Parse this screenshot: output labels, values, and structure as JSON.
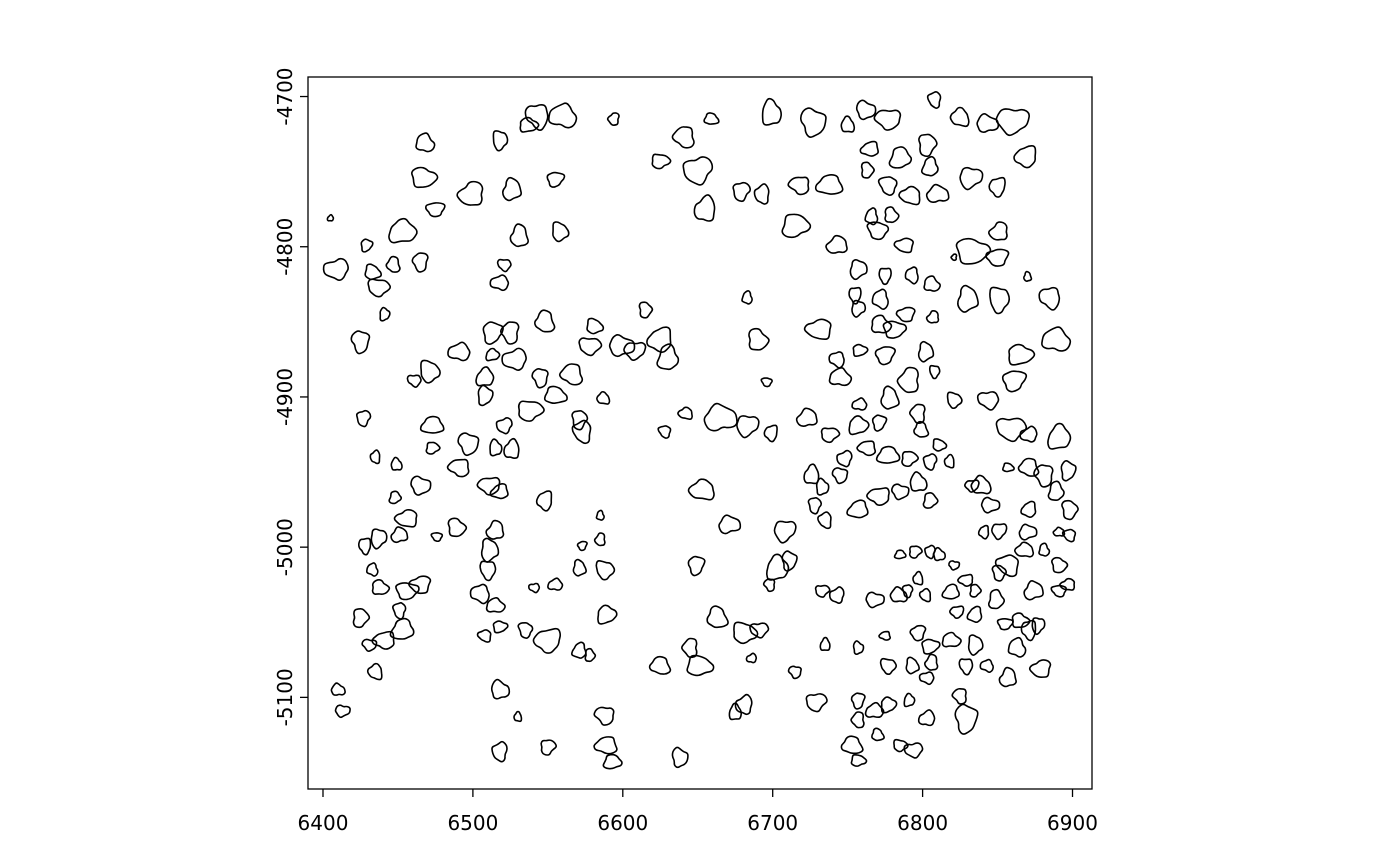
{
  "chart_data": {
    "type": "polygons",
    "xlim": [
      6390,
      6913
    ],
    "ylim": [
      -5161,
      -4687
    ],
    "xticks": [
      6400,
      6500,
      6600,
      6700,
      6800,
      6900
    ],
    "yticks": [
      -5100,
      -5000,
      -4900,
      -4800,
      -4700
    ],
    "color": "#000000",
    "x": [
      6468,
      6467,
      6475,
      6499,
      6526,
      6518,
      6543,
      6560,
      6537,
      6555,
      6594,
      6531,
      6558,
      6521,
      6518,
      6453,
      6429,
      6465,
      6447,
      6433,
      6437,
      6409,
      6405,
      6441,
      6425,
      6641,
      6659,
      6625,
      6650,
      6655,
      6699,
      6727,
      6718,
      6738,
      6715,
      6679,
      6693,
      6750,
      6762,
      6777,
      6765,
      6785,
      6803,
      6808,
      6825,
      6843,
      6860,
      6869,
      6805,
      6763,
      6777,
      6792,
      6810,
      6832,
      6850,
      6766,
      6779,
      6770,
      6788,
      6743,
      6757,
      6775,
      6793,
      6806,
      6833,
      6850,
      6851,
      6830,
      6851,
      6885,
      6889,
      6865,
      6861,
      6821,
      6870,
      6471,
      6461,
      6491,
      6513,
      6513,
      6525,
      6548,
      6581,
      6578,
      6528,
      6508,
      6508,
      6545,
      6566,
      6555,
      6538,
      6521,
      6526,
      6515,
      6497,
      6491,
      6473,
      6473,
      6427,
      6435,
      6449,
      6465,
      6511,
      6518,
      6448,
      6571,
      6573,
      6587,
      6599,
      6608,
      6625,
      6630,
      6615,
      6628,
      6642,
      6665,
      6683,
      6699,
      6683,
      6690,
      6696,
      6731,
      6723,
      6757,
      6755,
      6772,
      6772,
      6781,
      6789,
      6807,
      6802,
      6808,
      6743,
      6745,
      6758,
      6775,
      6791,
      6778,
      6821,
      6844,
      6758,
      6757,
      6771,
      6797,
      6799,
      6811,
      6859,
      6871,
      6891,
      6897,
      6881,
      6871,
      6857,
      6738,
      6748,
      6726,
      6733,
      6745,
      6763,
      6777,
      6791,
      6805,
      6818,
      6797,
      6785,
      6771,
      6757,
      6805,
      6728,
      6735,
      6839,
      6845,
      6833,
      6871,
      6889,
      6898,
      6898,
      6653,
      6671,
      6708,
      6548,
      6585,
      6489,
      6476,
      6456,
      6451,
      6437,
      6428,
      6433,
      6438,
      6456,
      6465,
      6515,
      6511,
      6510,
      6505,
      6515,
      6518,
      6573,
      6585,
      6571,
      6588,
      6541,
      6555,
      6589,
      6649,
      6645,
      6663,
      6681,
      6691,
      6686,
      6703,
      6711,
      6698,
      6625,
      6651,
      6733,
      6743,
      6735,
      6757,
      6715,
      6775,
      6785,
      6795,
      6805,
      6797,
      6811,
      6821,
      6829,
      6819,
      6835,
      6790,
      6802,
      6784,
      6768,
      6823,
      6835,
      6849,
      6851,
      6857,
      6868,
      6870,
      6851,
      6841,
      6881,
      6891,
      6891,
      6897,
      6874,
      6877,
      6871,
      6863,
      6865,
      6855,
      6879,
      6857,
      6835,
      6829,
      6843,
      6819,
      6805,
      6797,
      6806,
      6793,
      6777,
      6803,
      6768,
      6777,
      6757,
      6757,
      6770,
      6785,
      6794,
      6803,
      6791,
      6829,
      6825,
      6753,
      6757,
      6729,
      6681,
      6675,
      6638,
      6588,
      6589,
      6593,
      6550,
      6518,
      6530,
      6518,
      6431,
      6441,
      6453,
      6425,
      6451,
      6435,
      6410,
      6413,
      6550,
      6571,
      6578,
      6535,
      6508,
      6891
    ],
    "y": [
      -4731,
      -4754,
      -4775,
      -4765,
      -4762,
      -4729,
      -4713,
      -4713,
      -4719,
      -4755,
      -4715,
      -4793,
      -4790,
      -4812,
      -4824,
      -4790,
      -4799,
      -4810,
      -4812,
      -4817,
      -4827,
      -4815,
      -4781,
      -4845,
      -4863,
      -4727,
      -4715,
      -4743,
      -4749,
      -4775,
      -4711,
      -4717,
      -4759,
      -4759,
      -4786,
      -4763,
      -4765,
      -4719,
      -4709,
      -4715,
      -4735,
      -4741,
      -4732,
      -4702,
      -4714,
      -4718,
      -4716,
      -4740,
      -4747,
      -4749,
      -4759,
      -4766,
      -4765,
      -4754,
      -4760,
      -4780,
      -4779,
      -4789,
      -4799,
      -4799,
      -4815,
      -4819,
      -4819,
      -4825,
      -4803,
      -4807,
      -4790,
      -4835,
      -4835,
      -4834,
      -4862,
      -4872,
      -4889,
      -4807,
      -4820,
      -4883,
      -4889,
      -4870,
      -4872,
      -4857,
      -4857,
      -4850,
      -4853,
      -4866,
      -4875,
      -4887,
      -4899,
      -4887,
      -4885,
      -4899,
      -4909,
      -4919,
      -4935,
      -4934,
      -4931,
      -4947,
      -4919,
      -4934,
      -4914,
      -4940,
      -4945,
      -4959,
      -4959,
      -4963,
      -4967,
      -4915,
      -4923,
      -4901,
      -4866,
      -4869,
      -4862,
      -4874,
      -4842,
      -4923,
      -4911,
      -4914,
      -4919,
      -4924,
      -4834,
      -4862,
      -4890,
      -4855,
      -4914,
      -4841,
      -4832,
      -4835,
      -4852,
      -4855,
      -4845,
      -4847,
      -4870,
      -4883,
      -4875,
      -4887,
      -4869,
      -4872,
      -4889,
      -4901,
      -4902,
      -4902,
      -4905,
      -4919,
      -4917,
      -4911,
      -4922,
      -4932,
      -4921,
      -4925,
      -4927,
      -4949,
      -4952,
      -4947,
      -4947,
      -4925,
      -4941,
      -4952,
      -4960,
      -4952,
      -4934,
      -4939,
      -4941,
      -4943,
      -4943,
      -4957,
      -4963,
      -4966,
      -4975,
      -4969,
      -4972,
      -4982,
      -4959,
      -4972,
      -4959,
      -4975,
      -4963,
      -4975,
      -4992,
      -4962,
      -4985,
      -4989,
      -4969,
      -4979,
      -4987,
      -4993,
      -4981,
      -4992,
      -4994,
      -4999,
      -5015,
      -5027,
      -5029,
      -5025,
      -4989,
      -5002,
      -5015,
      -5031,
      -5039,
      -5053,
      -4999,
      -4995,
      -5014,
      -5015,
      -5027,
      -5025,
      -5045,
      -5012,
      -5067,
      -5047,
      -5057,
      -5055,
      -5074,
      -5014,
      -5009,
      -5025,
      -5079,
      -5079,
      -5029,
      -5032,
      -5065,
      -5067,
      -5083,
      -5059,
      -5005,
      -5003,
      -5003,
      -5021,
      -5005,
      -5012,
      -5022,
      -5030,
      -5029,
      -5029,
      -5032,
      -5032,
      -5035,
      -5043,
      -5045,
      -5035,
      -5017,
      -5012,
      -5002,
      -4990,
      -4989,
      -4990,
      -5002,
      -5012,
      -5029,
      -5025,
      -5029,
      -5052,
      -5055,
      -5067,
      -5049,
      -5051,
      -5081,
      -5087,
      -5065,
      -5079,
      -5079,
      -5062,
      -5066,
      -5057,
      -5077,
      -5079,
      -5079,
      -5087,
      -5109,
      -5105,
      -5102,
      -5115,
      -5125,
      -5132,
      -5135,
      -5114,
      -5102,
      -5114,
      -5099,
      -5132,
      -5142,
      -5103,
      -5105,
      -5110,
      -5140,
      -5112,
      -5132,
      -5143,
      -5133,
      -5136,
      -5113,
      -5095,
      -5065,
      -5062,
      -5055,
      -5047,
      -5042,
      -5083,
      -5095,
      -5109,
      -5062,
      -5069,
      -5072,
      -5055,
      -5059,
      -4990
    ],
    "sizes": [
      6,
      7,
      5,
      8,
      7,
      6,
      8,
      8,
      5,
      5,
      4,
      7,
      6,
      4,
      5,
      8,
      4,
      6,
      5,
      5,
      6,
      7,
      2,
      4,
      7,
      7,
      4,
      5,
      9,
      8,
      8,
      9,
      6,
      7,
      8,
      6,
      6,
      5,
      6,
      7,
      5,
      7,
      7,
      5,
      6,
      6,
      9,
      7,
      6,
      5,
      6,
      6,
      6,
      7,
      6,
      5,
      5,
      6,
      5,
      6,
      6,
      5,
      5,
      5,
      9,
      6,
      6,
      8,
      8,
      7,
      8,
      7,
      7,
      2,
      3,
      7,
      4,
      6,
      4,
      7,
      7,
      7,
      5,
      6,
      7,
      6,
      6,
      6,
      7,
      6,
      7,
      5,
      6,
      5,
      7,
      6,
      6,
      4,
      5,
      4,
      4,
      6,
      6,
      5,
      4,
      6,
      7,
      4,
      7,
      6,
      8,
      8,
      5,
      4,
      4,
      9,
      7,
      5,
      4,
      7,
      3,
      7,
      6,
      5,
      5,
      6,
      6,
      6,
      5,
      4,
      6,
      4,
      5,
      6,
      4,
      6,
      8,
      7,
      5,
      6,
      4,
      6,
      5,
      6,
      5,
      4,
      8,
      5,
      8,
      6,
      7,
      6,
      3,
      5,
      5,
      6,
      5,
      5,
      5,
      6,
      5,
      5,
      4,
      6,
      5,
      6,
      6,
      5,
      5,
      5,
      6,
      5,
      4,
      5,
      6,
      6,
      4,
      7,
      6,
      7,
      6,
      3,
      6,
      3,
      6,
      5,
      6,
      5,
      4,
      5,
      6,
      6,
      6,
      7,
      6,
      6,
      5,
      4,
      3,
      4,
      5,
      6,
      3,
      4,
      6,
      6,
      6,
      7,
      7,
      5,
      3,
      8,
      6,
      4,
      6,
      7,
      4,
      5,
      4,
      4,
      4,
      3,
      3,
      4,
      4,
      4,
      4,
      3,
      4,
      5,
      4,
      4,
      4,
      5,
      5,
      4,
      5,
      6,
      5,
      7,
      5,
      5,
      5,
      4,
      4,
      5,
      4,
      4,
      6,
      5,
      6,
      6,
      5,
      4,
      6,
      6,
      6,
      5,
      4,
      5,
      5,
      5,
      5,
      5,
      5,
      4,
      5,
      5,
      5,
      5,
      4,
      4,
      5,
      5,
      4,
      9,
      5,
      6,
      4,
      6,
      6,
      5,
      6,
      6,
      6,
      5,
      5,
      6,
      3,
      6,
      4,
      6,
      7,
      6,
      5,
      5,
      4,
      4,
      8,
      5,
      4,
      5,
      4,
      3
    ]
  }
}
